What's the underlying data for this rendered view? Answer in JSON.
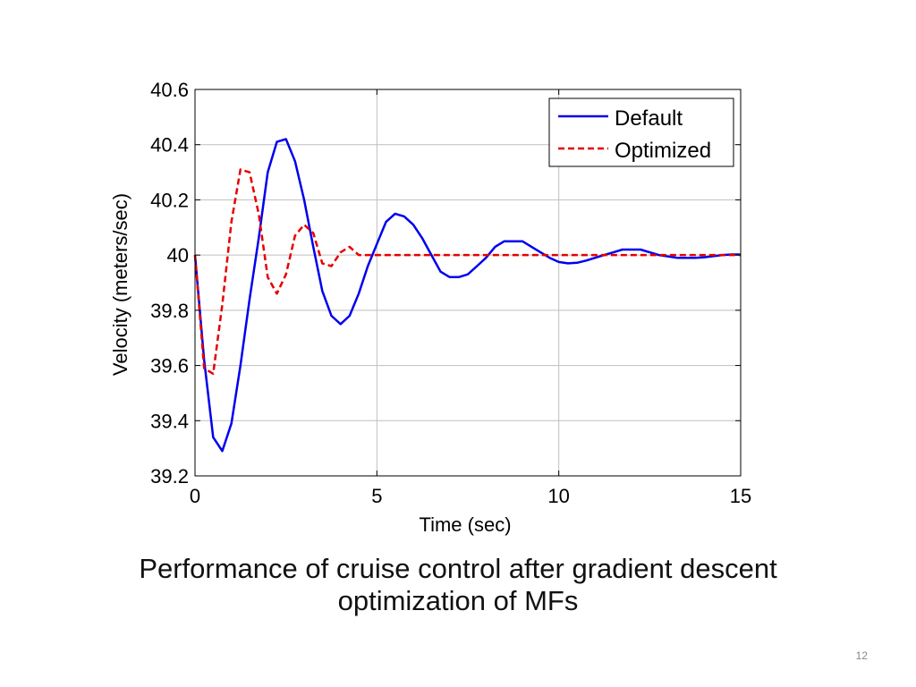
{
  "slide": {
    "caption_line1": "Performance of cruise control after gradient descent",
    "caption_line2": "optimization of MFs",
    "page_number": "12"
  },
  "chart_data": {
    "type": "line",
    "title": "",
    "xlabel": "Time (sec)",
    "ylabel": "Velocity (meters/sec)",
    "xlim": [
      0,
      15
    ],
    "ylim": [
      39.2,
      40.6
    ],
    "xticks": [
      0,
      5,
      10,
      15
    ],
    "yticks": [
      39.2,
      39.4,
      39.6,
      39.8,
      40,
      40.2,
      40.4,
      40.6
    ],
    "xtick_labels": [
      "0",
      "5",
      "10",
      "15"
    ],
    "ytick_labels": [
      "39.2",
      "39.4",
      "39.6",
      "39.8",
      "40",
      "40.2",
      "40.4",
      "40.6"
    ],
    "grid": true,
    "legend_position": "top-right",
    "series": [
      {
        "name": "Default",
        "color": "#0000ee",
        "style": "solid",
        "x": [
          0,
          0.25,
          0.5,
          0.75,
          1.0,
          1.25,
          1.5,
          1.75,
          2.0,
          2.25,
          2.5,
          2.75,
          3.0,
          3.25,
          3.5,
          3.75,
          4.0,
          4.25,
          4.5,
          4.75,
          5.0,
          5.25,
          5.5,
          5.75,
          6.0,
          6.25,
          6.5,
          6.75,
          7.0,
          7.25,
          7.5,
          7.75,
          8.0,
          8.25,
          8.5,
          8.75,
          9.0,
          9.25,
          9.5,
          9.75,
          10.0,
          10.25,
          10.5,
          10.75,
          11.0,
          11.25,
          11.5,
          11.75,
          12.0,
          12.25,
          12.5,
          12.75,
          13.0,
          13.25,
          13.5,
          13.75,
          14.0,
          14.25,
          14.5,
          14.75,
          15.0
        ],
        "y": [
          40.0,
          39.62,
          39.34,
          39.29,
          39.39,
          39.6,
          39.84,
          40.06,
          40.3,
          40.41,
          40.42,
          40.34,
          40.2,
          40.03,
          39.87,
          39.78,
          39.75,
          39.78,
          39.86,
          39.96,
          40.04,
          40.12,
          40.15,
          40.14,
          40.11,
          40.06,
          40.0,
          39.94,
          39.92,
          39.92,
          39.93,
          39.96,
          39.99,
          40.03,
          40.05,
          40.05,
          40.05,
          40.03,
          40.01,
          39.99,
          39.975,
          39.97,
          39.972,
          39.98,
          39.99,
          40.0,
          40.01,
          40.02,
          40.02,
          40.02,
          40.01,
          40.0,
          39.995,
          39.99,
          39.99,
          39.99,
          39.992,
          39.996,
          40.0,
          40.002,
          40.002
        ]
      },
      {
        "name": "Optimized",
        "color": "#e60000",
        "style": "dashed",
        "x": [
          0,
          0.25,
          0.5,
          0.75,
          1.0,
          1.25,
          1.5,
          1.75,
          2.0,
          2.25,
          2.5,
          2.75,
          3.0,
          3.25,
          3.5,
          3.75,
          4.0,
          4.25,
          4.5,
          4.75,
          5.0,
          6.0,
          7.0,
          8.0,
          9.0,
          10.0,
          11.0,
          12.0,
          13.0,
          14.0,
          15.0
        ],
        "y": [
          40.0,
          39.59,
          39.57,
          39.82,
          40.12,
          40.31,
          40.3,
          40.15,
          39.92,
          39.86,
          39.93,
          40.07,
          40.11,
          40.08,
          39.97,
          39.96,
          40.01,
          40.03,
          40.0,
          40.0,
          40.0,
          40.0,
          40.0,
          40.0,
          40.0,
          40.0,
          40.0,
          40.0,
          40.0,
          40.0,
          40.0
        ]
      }
    ]
  }
}
